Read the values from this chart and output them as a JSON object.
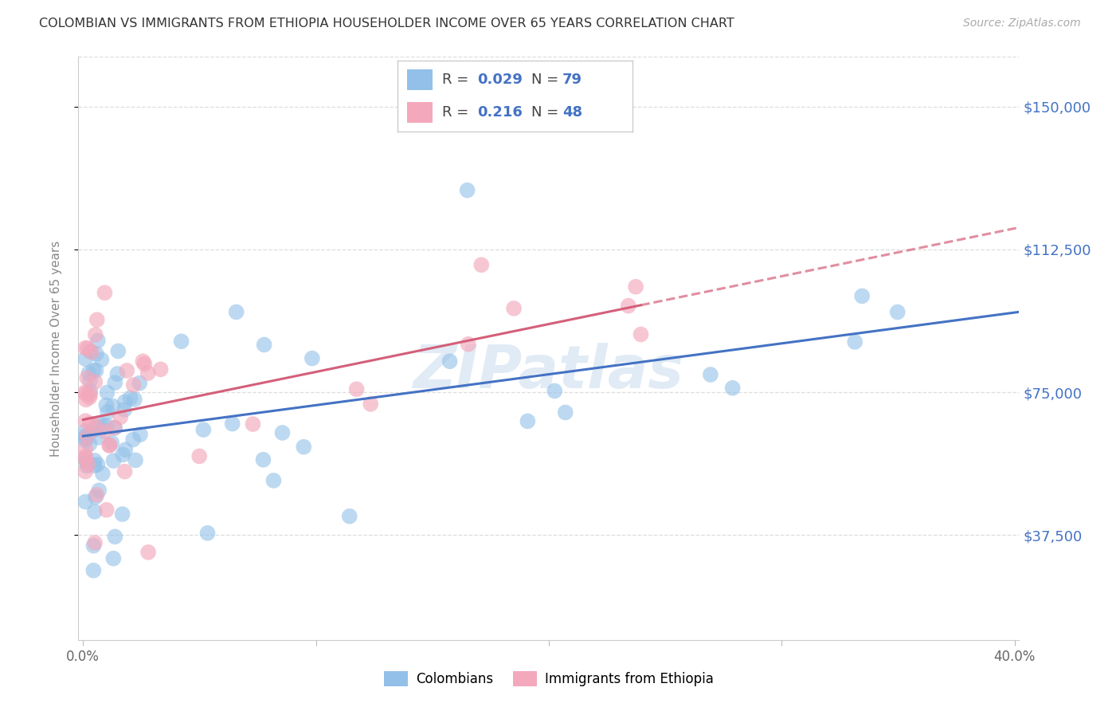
{
  "title": "COLOMBIAN VS IMMIGRANTS FROM ETHIOPIA HOUSEHOLDER INCOME OVER 65 YEARS CORRELATION CHART",
  "source": "Source: ZipAtlas.com",
  "ylabel": "Householder Income Over 65 years",
  "ytick_labels": [
    "$37,500",
    "$75,000",
    "$112,500",
    "$150,000"
  ],
  "ytick_values": [
    37500,
    75000,
    112500,
    150000
  ],
  "ymin": 10000,
  "ymax": 163000,
  "xmin": -0.002,
  "xmax": 0.402,
  "legend1_r": "0.029",
  "legend1_n": "79",
  "legend2_r": "0.216",
  "legend2_n": "48",
  "color_blue": "#92c0e8",
  "color_pink": "#f4a8bc",
  "line_blue": "#4472c4",
  "line_pink": "#d45f7a",
  "watermark": "ZIPatlas",
  "title_color": "#333333",
  "source_color": "#aaaaaa",
  "grid_color": "#dddddd",
  "ytick_color": "#4472c4",
  "ylabel_color": "#888888"
}
